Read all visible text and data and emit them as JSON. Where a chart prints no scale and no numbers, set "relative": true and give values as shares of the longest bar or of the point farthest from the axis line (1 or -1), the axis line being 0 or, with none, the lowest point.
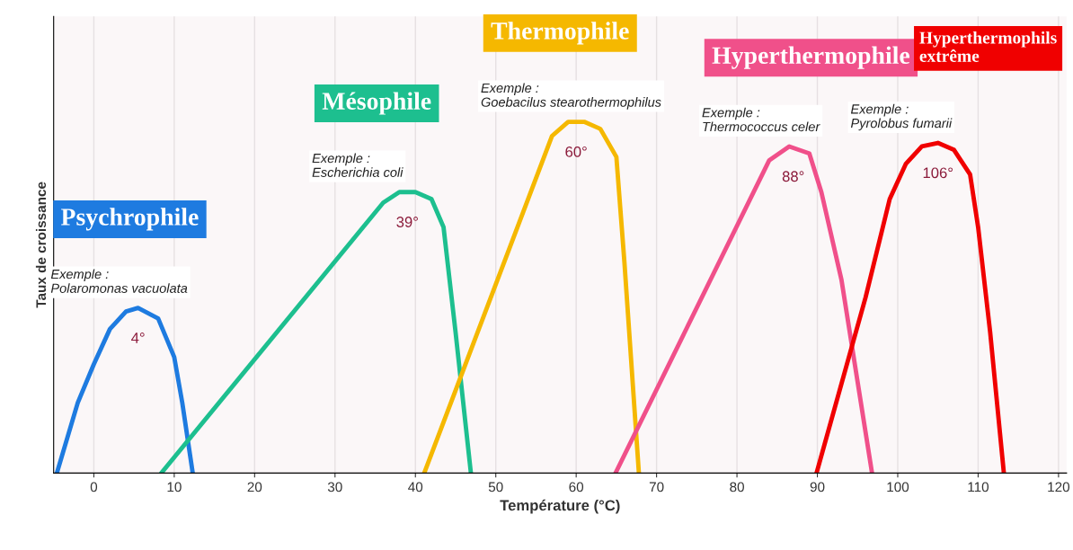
{
  "chart_data": {
    "type": "line",
    "relative": true,
    "xlabel": "Température (°C)",
    "ylabel": "Taux de croissance",
    "xlim": [
      -5,
      121
    ],
    "xticks": [
      0,
      10,
      20,
      30,
      40,
      50,
      60,
      70,
      80,
      90,
      100,
      110,
      120
    ],
    "grid": "x",
    "marker": "none",
    "line_style": "solid",
    "series": [
      {
        "name": "Psychrophile",
        "color": "#1e7be0",
        "x": [
          -4.6,
          -2,
          0,
          2,
          4,
          5.5,
          8,
          10,
          11,
          12.3
        ],
        "values": [
          0,
          0.2,
          0.31,
          0.41,
          0.46,
          0.47,
          0.44,
          0.33,
          0.2,
          0
        ]
      },
      {
        "name": "Mésophile",
        "color": "#1dbf8f",
        "x": [
          8.4,
          36,
          38,
          40,
          42,
          43.5,
          45,
          46.9
        ],
        "values": [
          0,
          0.77,
          0.8,
          0.8,
          0.78,
          0.7,
          0.4,
          0
        ]
      },
      {
        "name": "Thermophile",
        "color": "#f5b800",
        "x": [
          41.1,
          57,
          59,
          61,
          63,
          65,
          66,
          67.8
        ],
        "values": [
          0,
          0.96,
          1.0,
          1.0,
          0.98,
          0.9,
          0.6,
          0
        ]
      },
      {
        "name": "Hyperthermophile",
        "color": "#f0508a",
        "x": [
          64.9,
          84,
          86.5,
          89,
          90.5,
          93,
          96.8
        ],
        "values": [
          0,
          0.89,
          0.93,
          0.91,
          0.8,
          0.55,
          0
        ]
      },
      {
        "name": "Hyperthermophils\nextrême",
        "color": "#f00000",
        "x": [
          89.9,
          96,
          99,
          101,
          103,
          105,
          107,
          109,
          110,
          111.5,
          113.2
        ],
        "values": [
          0,
          0.5,
          0.78,
          0.88,
          0.93,
          0.94,
          0.92,
          0.85,
          0.7,
          0.4,
          0
        ]
      }
    ],
    "annotations": [
      "Exemple :\nPolaromonas vacuolata",
      "Exemple :\nEscherichia coli",
      "Exemple :\nGoebacilus stearothermophilus",
      "Exemple :\nThermococcus celer",
      "Exemple :\nPyrolobus fumarii",
      {
        "text": "4°",
        "x": 5.5,
        "y": 0.47
      },
      {
        "text": "39°",
        "x": 39,
        "y": 0.8
      },
      {
        "text": "60°",
        "x": 60,
        "y": 1.0
      },
      {
        "text": "88°",
        "x": 87,
        "y": 0.93
      },
      {
        "text": "106°",
        "x": 105,
        "y": 0.94
      }
    ]
  }
}
